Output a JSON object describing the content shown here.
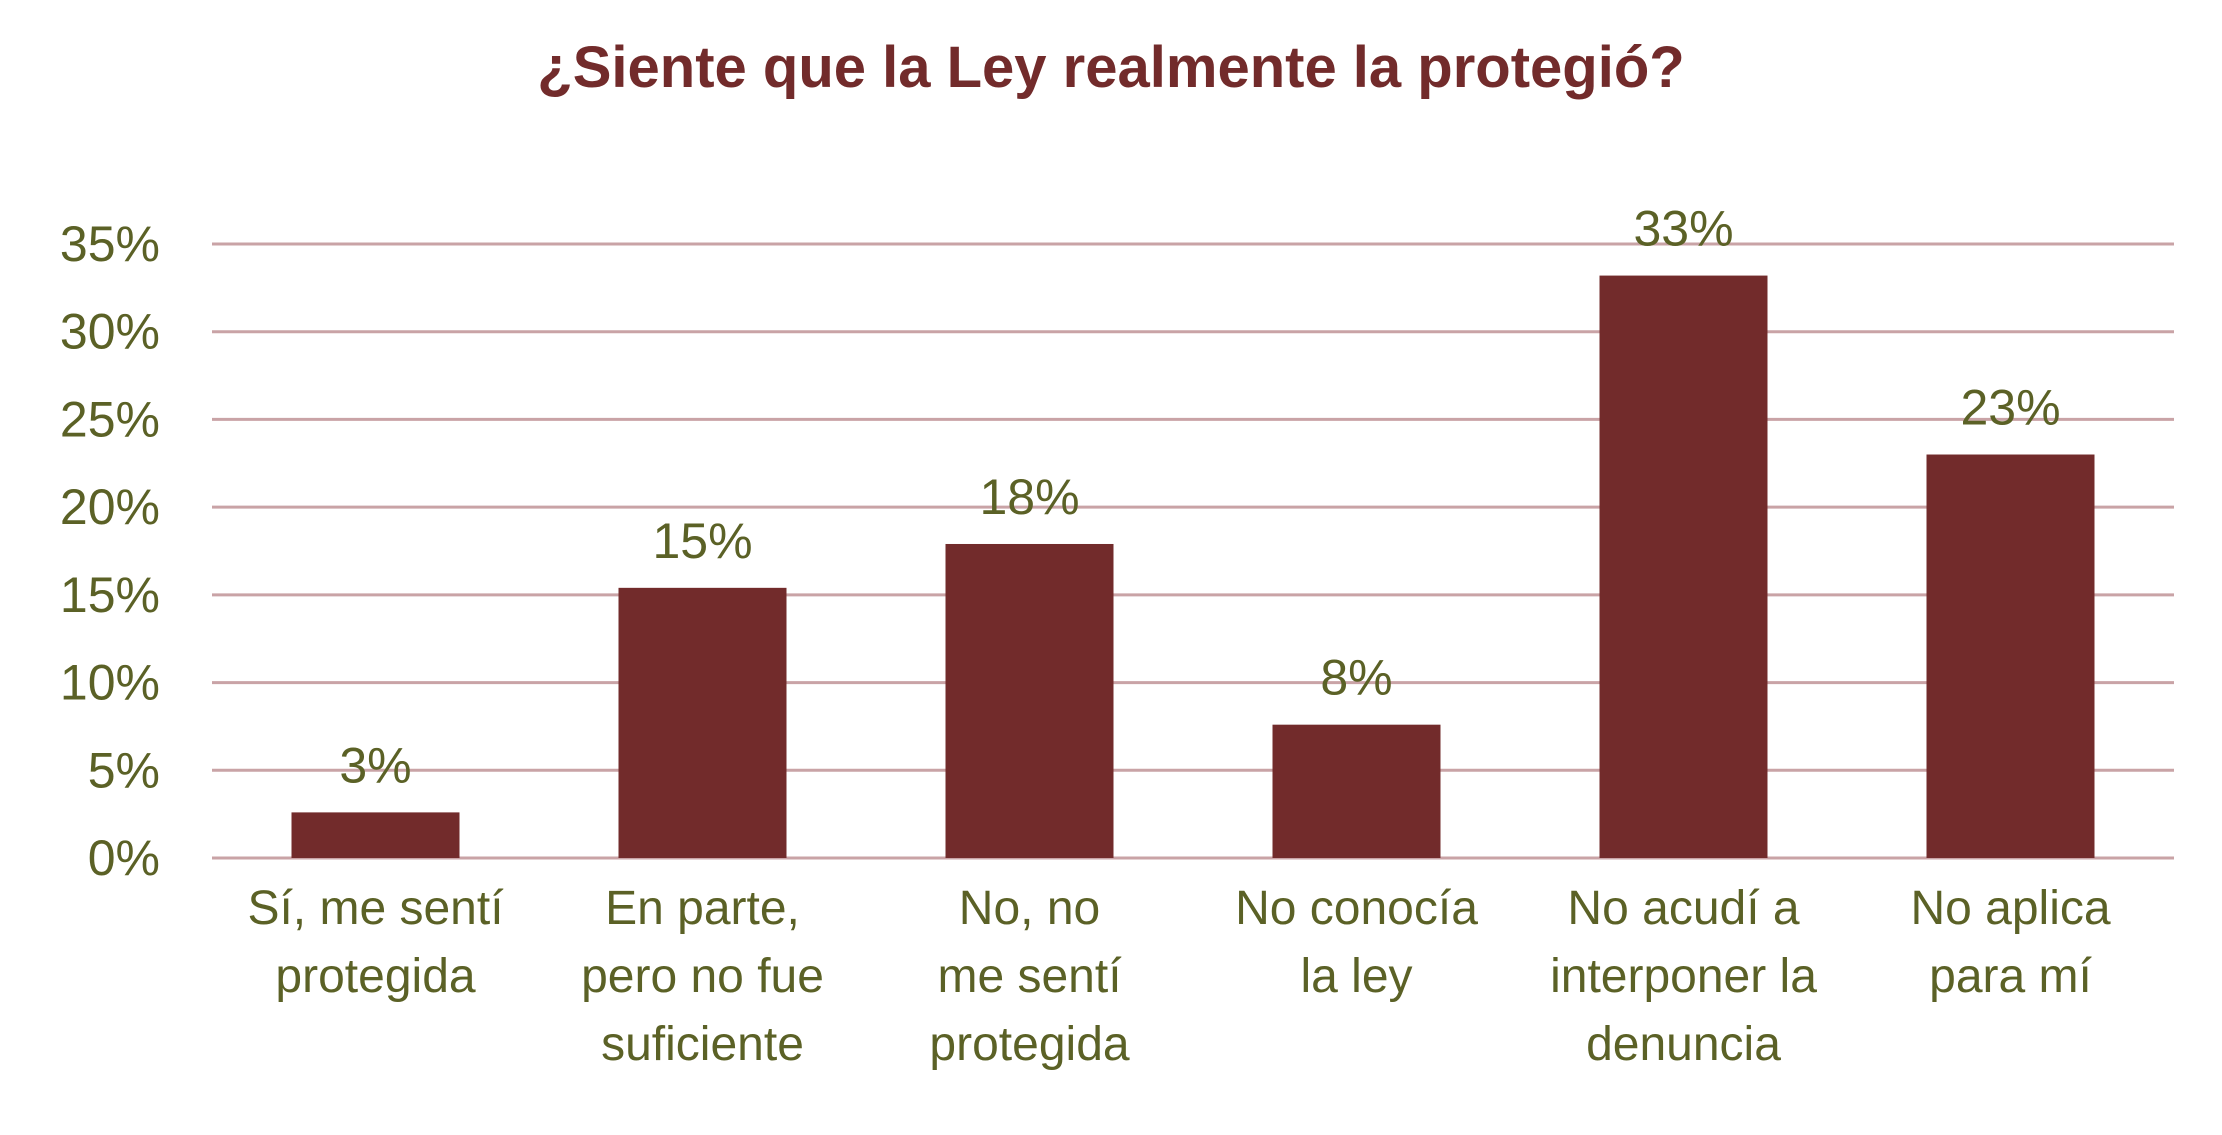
{
  "colors": {
    "bar": "#722B2B",
    "grid": "#C9A3A6",
    "text": "#5B6126",
    "title": "#722B2B"
  },
  "chart_data": {
    "type": "bar",
    "title": "¿Siente que la Ley realmente la protegió?",
    "xlabel": "",
    "ylabel": "",
    "ylim": [
      0,
      35
    ],
    "y_ticks": [
      "0%",
      "5%",
      "10%",
      "15%",
      "20%",
      "25%",
      "30%",
      "35%"
    ],
    "grid": true,
    "legend": "none",
    "categories": [
      [
        "Sí, me sentí",
        "protegida"
      ],
      [
        "En parte,",
        "pero no fue",
        "suficiente"
      ],
      [
        "No, no",
        "me sentí",
        "protegida"
      ],
      [
        "No conocía",
        "la ley"
      ],
      [
        "No acudí a",
        "interponer la",
        "denuncia"
      ],
      [
        "No aplica",
        "para mí"
      ]
    ],
    "values": [
      2.6,
      15.4,
      17.9,
      7.6,
      33.2,
      23.0
    ],
    "data_labels": [
      "3%",
      "15%",
      "18%",
      "8%",
      "33%",
      "23%"
    ]
  }
}
